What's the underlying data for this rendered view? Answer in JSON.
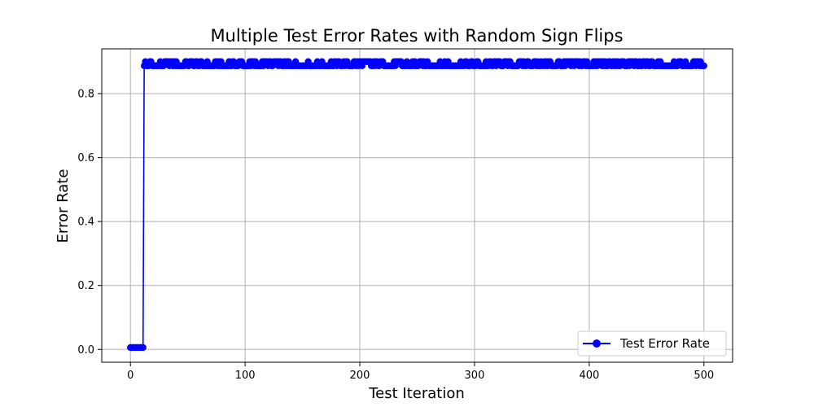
{
  "chart_data": {
    "type": "line",
    "title": "Multiple Test Error Rates with Random Sign Flips",
    "xlabel": "Test Iteration",
    "ylabel": "Error Rate",
    "xlim": [
      -25,
      525
    ],
    "ylim": [
      -0.04,
      0.94
    ],
    "xticks": [
      0,
      100,
      200,
      300,
      400,
      500
    ],
    "yticks": [
      0.0,
      0.2,
      0.4,
      0.6,
      0.8
    ],
    "xtick_labels": [
      "0",
      "100",
      "200",
      "300",
      "400",
      "500"
    ],
    "ytick_labels": [
      "0.0",
      "0.2",
      "0.4",
      "0.6",
      "0.8"
    ],
    "grid": true,
    "legend_position": "bottom-right",
    "series": [
      {
        "name": "Test Error Rate",
        "color": "#0000ff",
        "marker": "circle",
        "segments": [
          {
            "x_start": 0,
            "x_end": 11,
            "y": 0.006,
            "pattern": "constant"
          },
          {
            "x_start": 12,
            "x_end": 500,
            "y_values": [
              0.887,
              0.9
            ],
            "pattern": "alternating"
          }
        ]
      }
    ]
  }
}
